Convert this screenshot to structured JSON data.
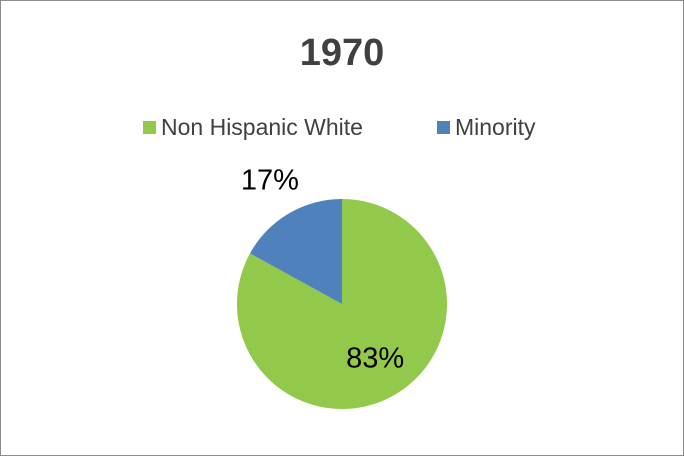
{
  "chart_data": {
    "type": "pie",
    "title": "1970",
    "categories": [
      "Non Hispanic White",
      "Minority"
    ],
    "values": [
      83,
      17
    ],
    "value_labels": [
      "83%",
      "17%"
    ],
    "colors": [
      "#92c94a",
      "#4f81bd"
    ],
    "legend": "top"
  }
}
